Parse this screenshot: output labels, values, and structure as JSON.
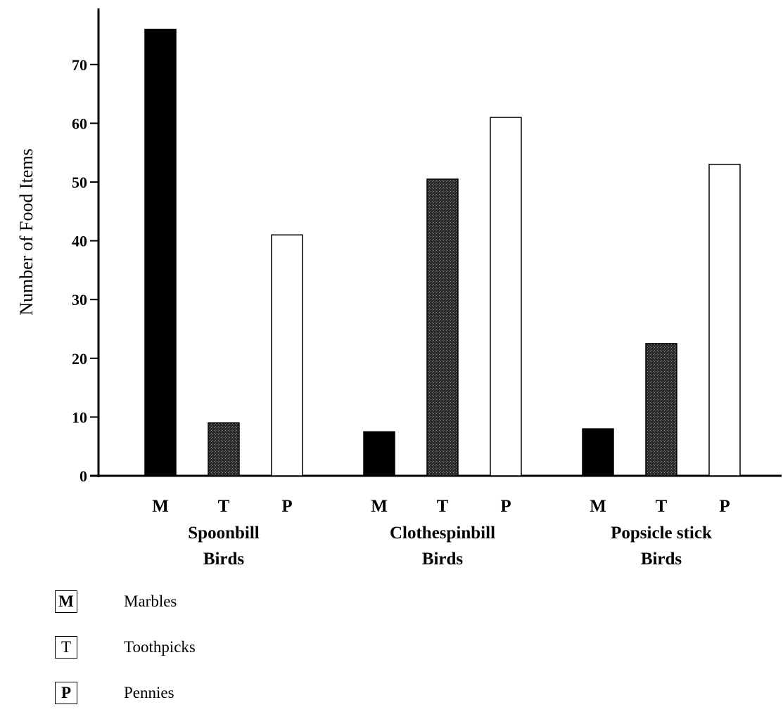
{
  "chart_data": {
    "type": "bar",
    "ylabel": "Number of Food Items",
    "ylim": [
      0,
      80
    ],
    "yticks": [
      0,
      10,
      20,
      30,
      40,
      50,
      60,
      70
    ],
    "groups": [
      {
        "name_lines": [
          "Spoonbill",
          "Birds"
        ],
        "bars": [
          {
            "code": "M",
            "value": 76
          },
          {
            "code": "T",
            "value": 9
          },
          {
            "code": "P",
            "value": 41
          }
        ]
      },
      {
        "name_lines": [
          "Clothespinbill",
          "Birds"
        ],
        "bars": [
          {
            "code": "M",
            "value": 7.5
          },
          {
            "code": "T",
            "value": 50.5
          },
          {
            "code": "P",
            "value": 61
          }
        ]
      },
      {
        "name_lines": [
          "Popsicle stick",
          "Birds"
        ],
        "bars": [
          {
            "code": "M",
            "value": 8
          },
          {
            "code": "T",
            "value": 22.5
          },
          {
            "code": "P",
            "value": 53
          }
        ]
      }
    ],
    "series_colors": {
      "M": "#000000",
      "T": "#3a3a3a",
      "P": "#ffffff"
    },
    "legend": [
      {
        "code": "M",
        "label": "Marbles"
      },
      {
        "code": "T",
        "label": "Toothpicks"
      },
      {
        "code": "P",
        "label": "Pennies"
      }
    ]
  }
}
